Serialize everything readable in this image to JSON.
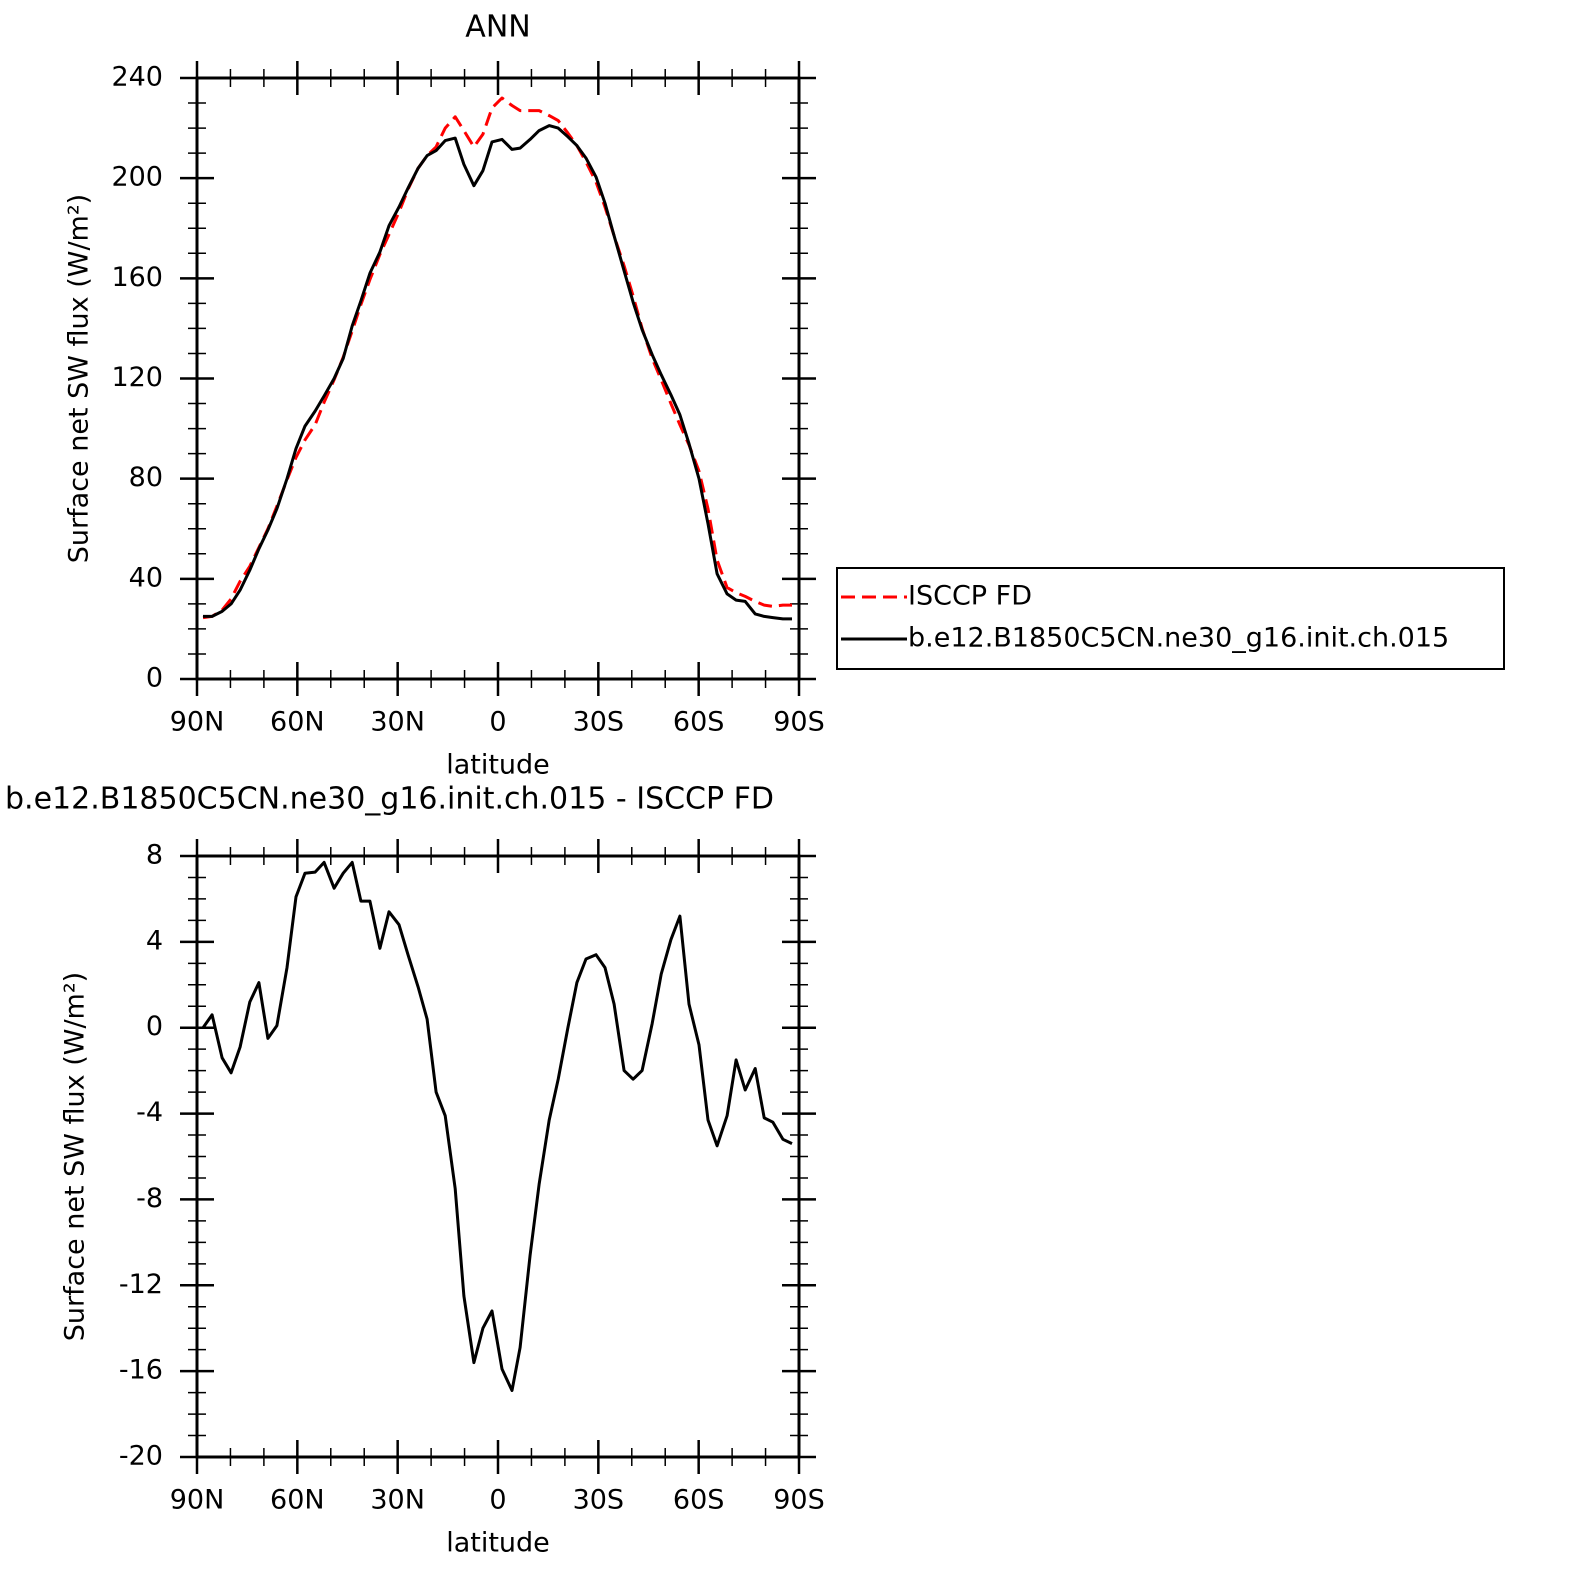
{
  "chart_data": [
    {
      "type": "line",
      "title": "ANN",
      "xlabel": "latitude",
      "ylabel": "Surface net SW flux (W/m²)",
      "x": [
        88.2,
        85.5,
        82.5,
        79.8,
        77.1,
        74.2,
        71.5,
        68.8,
        66.1,
        63.1,
        60.4,
        57.7,
        54.7,
        52.0,
        49.0,
        46.3,
        43.6,
        41.0,
        38.3,
        35.3,
        32.6,
        29.6,
        26.9,
        23.9,
        21.2,
        18.5,
        15.8,
        12.8,
        10.2,
        7.2,
        4.5,
        1.8,
        -1.2,
        -4.2,
        -6.6,
        -9.6,
        -12.3,
        -15.3,
        -18.0,
        -20.9,
        -23.6,
        -26.3,
        -29.3,
        -32.0,
        -34.7,
        -37.7,
        -40.4,
        -43.1,
        -46.1,
        -48.8,
        -51.7,
        -54.4,
        -57.1,
        -60.1,
        -62.8,
        -65.5,
        -68.5,
        -71.2,
        -73.9,
        -76.9,
        -79.6,
        -82.2,
        -85.2,
        -87.9
      ],
      "series": [
        {
          "name": "ISCCP FD",
          "color": "#ff0000",
          "line_style": "dashed",
          "values": [
            24.5,
            25,
            27.5,
            32,
            39,
            45,
            52.5,
            60,
            69,
            79.5,
            88.5,
            95.5,
            101.5,
            110.5,
            119.5,
            128.5,
            139,
            149.5,
            159.5,
            169.5,
            177.5,
            186.5,
            195.5,
            204,
            209,
            212.5,
            220,
            224.5,
            219,
            212.5,
            217.5,
            228,
            232,
            229,
            227,
            227,
            227,
            225,
            223,
            218,
            213,
            206.5,
            198.5,
            188.5,
            177,
            165,
            153,
            140,
            128,
            119.5,
            110,
            101.5,
            93.5,
            83,
            68,
            47.5,
            36.5,
            34.5,
            33,
            31,
            29.5,
            29,
            29.5,
            29.5
          ]
        },
        {
          "name": "b.e12.B1850C5CN.ne30_g16.init.ch.015",
          "color": "#000000",
          "line_style": "solid",
          "values": [
            25,
            25,
            27,
            30,
            35.5,
            43.5,
            52,
            59.5,
            68,
            80,
            92,
            101,
            107,
            113,
            120,
            128,
            141,
            151,
            162,
            170.5,
            181,
            188.5,
            196,
            204,
            209,
            211,
            215,
            216,
            205.5,
            197,
            203,
            214.5,
            215.5,
            211.5,
            212,
            215.5,
            219,
            221,
            220,
            216.5,
            213,
            208,
            200.5,
            190,
            177,
            163,
            150.5,
            139.5,
            129.5,
            121.5,
            113.5,
            105.5,
            94,
            80,
            62,
            42,
            34,
            31.5,
            31,
            26,
            25,
            24.5,
            24,
            24
          ]
        }
      ],
      "xlim": [
        90,
        -90
      ],
      "xticks": [
        {
          "value": 90,
          "label": "90N"
        },
        {
          "value": 60,
          "label": "60N"
        },
        {
          "value": 30,
          "label": "30N"
        },
        0,
        {
          "value": -30,
          "label": "30S"
        },
        {
          "value": -60,
          "label": "60S"
        },
        {
          "value": -90,
          "label": "90S"
        }
      ],
      "ylim": [
        0,
        240
      ],
      "yticks": [
        0,
        40,
        80,
        120,
        160,
        200,
        240
      ],
      "legend": "right"
    },
    {
      "type": "line",
      "title": "b.e12.B1850C5CN.ne30_g16.init.ch.015 - ISCCP FD",
      "xlabel": "latitude",
      "ylabel": "Surface net SW flux (W/m²)",
      "x": [
        88.2,
        85.5,
        82.5,
        79.8,
        77.1,
        74.2,
        71.5,
        68.8,
        66.1,
        63.1,
        60.4,
        57.7,
        54.7,
        52.0,
        49.0,
        46.3,
        43.6,
        41.0,
        38.3,
        35.3,
        32.6,
        29.6,
        26.9,
        23.9,
        21.2,
        18.5,
        15.8,
        12.8,
        10.2,
        7.2,
        4.5,
        1.8,
        -1.2,
        -4.2,
        -6.6,
        -9.6,
        -12.3,
        -15.3,
        -18.0,
        -20.9,
        -23.6,
        -26.3,
        -29.3,
        -32.0,
        -34.7,
        -37.7,
        -40.4,
        -43.1,
        -46.1,
        -48.8,
        -51.7,
        -54.4,
        -57.1,
        -60.1,
        -62.8,
        -65.5,
        -68.5,
        -71.2,
        -73.9,
        -76.9,
        -79.6,
        -82.2,
        -85.2,
        -87.9
      ],
      "values": [
        0,
        0.6,
        -1.4,
        -2.1,
        -0.9,
        1.2,
        2.1,
        -0.5,
        0.1,
        2.8,
        6.1,
        7.2,
        7.25,
        7.7,
        6.5,
        7.2,
        7.7,
        5.9,
        5.9,
        3.7,
        5.4,
        4.8,
        3.4,
        1.9,
        0.4,
        -3.0,
        -4.1,
        -7.5,
        -12.5,
        -15.6,
        -14.0,
        -13.2,
        -15.9,
        -16.9,
        -14.9,
        -10.6,
        -7.3,
        -4.3,
        -2.4,
        0.0,
        2.1,
        3.2,
        3.4,
        2.8,
        1.1,
        -2.0,
        -2.4,
        -2.0,
        0.2,
        2.5,
        4.1,
        5.2,
        1.1,
        -0.8,
        -4.3,
        -5.5,
        -4.1,
        -1.5,
        -2.9,
        -1.9,
        -4.2,
        -4.4,
        -5.2,
        -5.4
      ],
      "color": "#000000",
      "xlim": [
        90,
        -90
      ],
      "xticks": [
        {
          "value": 90,
          "label": "90N"
        },
        {
          "value": 60,
          "label": "60N"
        },
        {
          "value": 30,
          "label": "30N"
        },
        0,
        {
          "value": -30,
          "label": "30S"
        },
        {
          "value": -60,
          "label": "60S"
        },
        {
          "value": -90,
          "label": "90S"
        }
      ],
      "ylim": [
        -20,
        8
      ],
      "yticks": [
        -20,
        -16,
        -12,
        -8,
        -4,
        0,
        4,
        8
      ]
    }
  ]
}
